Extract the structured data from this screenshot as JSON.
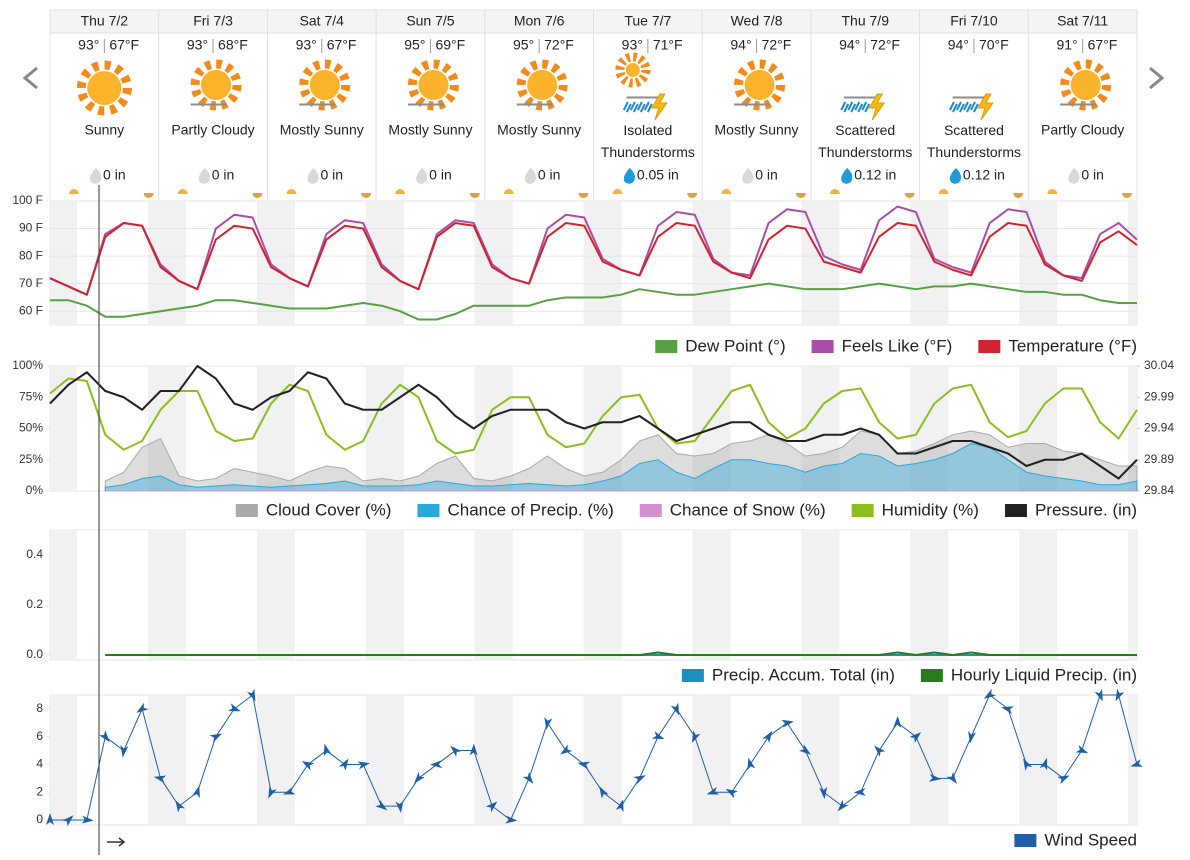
{
  "forecast": {
    "days": [
      {
        "day": "Thu 7/2",
        "high": "93°",
        "low": "67°F",
        "condition": "Sunny",
        "precip": "0 in"
      },
      {
        "day": "Fri 7/3",
        "high": "93°",
        "low": "68°F",
        "condition": "Partly Cloudy",
        "precip": "0 in"
      },
      {
        "day": "Sat 7/4",
        "high": "93°",
        "low": "67°F",
        "condition": "Mostly Sunny",
        "precip": "0 in"
      },
      {
        "day": "Sun 7/5",
        "high": "95°",
        "low": "69°F",
        "condition": "Mostly Sunny",
        "precip": "0 in"
      },
      {
        "day": "Mon 7/6",
        "high": "95°",
        "low": "72°F",
        "condition": "Mostly Sunny",
        "precip": "0 in"
      },
      {
        "day": "Tue 7/7",
        "high": "93°",
        "low": "71°F",
        "condition": "Isolated Thunderstorms",
        "precip": "0.05 in"
      },
      {
        "day": "Wed 7/8",
        "high": "94°",
        "low": "72°F",
        "condition": "Mostly Sunny",
        "precip": "0 in"
      },
      {
        "day": "Thu 7/9",
        "high": "94°",
        "low": "72°F",
        "condition": "Scattered Thunderstorms",
        "precip": "0.12 in"
      },
      {
        "day": "Fri 7/10",
        "high": "94°",
        "low": "70°F",
        "condition": "Scattered Thunderstorms",
        "precip": "0.12 in"
      },
      {
        "day": "Sat 7/11",
        "high": "91°",
        "low": "67°F",
        "condition": "Partly Cloudy",
        "precip": "0 in"
      }
    ]
  },
  "chart_data": [
    {
      "type": "line",
      "grid": true,
      "legend": "bottom-right",
      "ylim": [
        55,
        100
      ],
      "yticks": [
        {
          "value": 60,
          "label": "60 F"
        },
        {
          "value": 70,
          "label": "70 F"
        },
        {
          "value": 80,
          "label": "80 F"
        },
        {
          "value": 90,
          "label": "90 F"
        },
        {
          "value": 100,
          "label": "100 F"
        }
      ],
      "series": [
        {
          "name": "Dew Point (°)",
          "color": "#5a9e45",
          "values": [
            64,
            64,
            62,
            58,
            58,
            59,
            60,
            61,
            62,
            64,
            64,
            63,
            62,
            61,
            61,
            61,
            62,
            63,
            62,
            60,
            57,
            57,
            59,
            62,
            62,
            62,
            62,
            64,
            65,
            65,
            65,
            66,
            68,
            67,
            66,
            66,
            67,
            68,
            69,
            70,
            69,
            68,
            68,
            68,
            69,
            70,
            69,
            68,
            69,
            69,
            70,
            69,
            68,
            67,
            67,
            66,
            66,
            64,
            63,
            63
          ]
        },
        {
          "name": "Feels Like (°F)",
          "color": "#a94ea7",
          "values": [
            72,
            69,
            66,
            88,
            92,
            91,
            77,
            71,
            68,
            90,
            95,
            94,
            77,
            72,
            69,
            88,
            93,
            92,
            77,
            71,
            68,
            88,
            93,
            92,
            77,
            72,
            70,
            90,
            95,
            94,
            79,
            75,
            73,
            91,
            96,
            95,
            79,
            74,
            73,
            92,
            97,
            96,
            80,
            77,
            75,
            93,
            98,
            96,
            79,
            76,
            74,
            92,
            97,
            96,
            78,
            73,
            72,
            88,
            92,
            86
          ]
        },
        {
          "name": "Temperature (°F)",
          "color": "#d1232f",
          "values": [
            72,
            69,
            66,
            87,
            92,
            91,
            76,
            71,
            68,
            86,
            91,
            90,
            76,
            72,
            69,
            86,
            91,
            90,
            76,
            71,
            68,
            87,
            92,
            91,
            76,
            72,
            70,
            87,
            92,
            91,
            78,
            75,
            73,
            87,
            92,
            91,
            78,
            74,
            72,
            86,
            91,
            90,
            78,
            76,
            74,
            87,
            92,
            91,
            78,
            75,
            73,
            87,
            92,
            91,
            77,
            73,
            71,
            85,
            89,
            84
          ]
        }
      ]
    },
    {
      "type": "line",
      "grid": false,
      "legend": "bottom-right",
      "ylim": [
        0,
        100
      ],
      "yticks": [
        {
          "value": 0,
          "label": "0%"
        },
        {
          "value": 25,
          "label": "25%"
        },
        {
          "value": 50,
          "label": "50%"
        },
        {
          "value": 75,
          "label": "75%"
        },
        {
          "value": 100,
          "label": "100%"
        }
      ],
      "y2lim": [
        29.84,
        30.04
      ],
      "y2ticks": [
        29.84,
        29.89,
        29.94,
        29.99,
        30.04
      ],
      "series": [
        {
          "name": "Cloud Cover (%)",
          "color": "#aaaaaa",
          "type": "area",
          "values": [
            null,
            null,
            null,
            8,
            15,
            35,
            42,
            12,
            8,
            10,
            18,
            15,
            12,
            8,
            15,
            20,
            18,
            8,
            10,
            8,
            12,
            22,
            28,
            10,
            8,
            12,
            18,
            28,
            18,
            12,
            15,
            25,
            40,
            45,
            30,
            28,
            30,
            38,
            40,
            45,
            38,
            28,
            30,
            35,
            48,
            45,
            30,
            32,
            38,
            45,
            48,
            45,
            35,
            38,
            38,
            32,
            30,
            25,
            20,
            20
          ]
        },
        {
          "name": "Chance of Precip. (%)",
          "color": "#29a8dc",
          "type": "area",
          "values": [
            null,
            null,
            null,
            3,
            5,
            10,
            12,
            5,
            3,
            4,
            5,
            4,
            3,
            4,
            5,
            6,
            8,
            4,
            4,
            4,
            5,
            8,
            6,
            4,
            4,
            5,
            6,
            5,
            4,
            5,
            8,
            12,
            22,
            25,
            15,
            10,
            18,
            25,
            25,
            22,
            20,
            15,
            20,
            22,
            30,
            28,
            20,
            22,
            25,
            30,
            38,
            35,
            25,
            15,
            12,
            10,
            8,
            5,
            5,
            8
          ]
        },
        {
          "name": "Chance of Snow (%)",
          "color": "#d48fd0",
          "type": "area",
          "values": [
            null,
            null,
            null,
            0,
            0,
            0,
            0,
            0,
            0,
            0,
            0,
            0,
            0,
            0,
            0,
            0,
            0,
            0,
            0,
            0,
            0,
            0,
            0,
            0,
            0,
            0,
            0,
            0,
            0,
            0,
            0,
            0,
            0,
            0,
            0,
            0,
            0,
            0,
            0,
            0,
            0,
            0,
            0,
            0,
            0,
            0,
            0,
            0,
            0,
            0,
            0,
            0,
            0,
            0,
            0,
            0,
            0,
            0,
            0,
            0
          ]
        },
        {
          "name": "Humidity (%)",
          "color": "#8cbf1e",
          "values": [
            78,
            90,
            88,
            45,
            33,
            40,
            65,
            80,
            80,
            48,
            40,
            42,
            70,
            85,
            80,
            45,
            33,
            40,
            70,
            85,
            75,
            40,
            30,
            33,
            65,
            75,
            75,
            45,
            35,
            38,
            60,
            75,
            77,
            50,
            38,
            40,
            60,
            80,
            85,
            55,
            42,
            50,
            70,
            80,
            82,
            55,
            42,
            45,
            70,
            82,
            85,
            55,
            43,
            48,
            70,
            82,
            82,
            55,
            42,
            65
          ]
        },
        {
          "name": "Pressure. (in)",
          "color": "#222222",
          "axis": "y2",
          "values": [
            29.98,
            30.01,
            30.03,
            30.0,
            29.99,
            29.97,
            30.0,
            30.0,
            30.04,
            30.02,
            29.98,
            29.97,
            29.99,
            30.0,
            30.03,
            30.02,
            29.98,
            29.97,
            29.97,
            29.99,
            30.01,
            29.99,
            29.96,
            29.94,
            29.96,
            29.97,
            29.97,
            29.97,
            29.95,
            29.94,
            29.95,
            29.95,
            29.96,
            29.94,
            29.92,
            29.93,
            29.94,
            29.95,
            29.95,
            29.93,
            29.92,
            29.92,
            29.93,
            29.93,
            29.94,
            29.93,
            29.9,
            29.9,
            29.91,
            29.92,
            29.92,
            29.91,
            29.9,
            29.88,
            29.89,
            29.89,
            29.9,
            29.88,
            29.86,
            29.89
          ]
        }
      ]
    },
    {
      "type": "line",
      "grid": false,
      "legend": "bottom-right",
      "ylim": [
        0,
        0.5
      ],
      "yticks": [
        {
          "value": 0,
          "label": "0.0"
        },
        0.2,
        0.4
      ],
      "series": [
        {
          "name": "Precip. Accum. Total (in)",
          "color": "#1a8fc0",
          "values": [
            null,
            null,
            null,
            0,
            0,
            0,
            0,
            0,
            0,
            0,
            0,
            0,
            0,
            0,
            0,
            0,
            0,
            0,
            0,
            0,
            0,
            0,
            0,
            0,
            0,
            0,
            0,
            0,
            0,
            0,
            0,
            0,
            0,
            0,
            0,
            0,
            0,
            0,
            0,
            0,
            0,
            0,
            0,
            0,
            0,
            0,
            0,
            0,
            0,
            0,
            0,
            0,
            0,
            0,
            0,
            0,
            0,
            0,
            0,
            0
          ]
        },
        {
          "name": "Hourly Liquid Precip. (in)",
          "color": "#2a7a1e",
          "values": [
            null,
            null,
            null,
            0,
            0,
            0,
            0,
            0,
            0,
            0,
            0,
            0,
            0,
            0,
            0,
            0,
            0,
            0,
            0,
            0,
            0,
            0,
            0,
            0,
            0,
            0,
            0,
            0,
            0,
            0,
            0,
            0,
            0,
            0.01,
            0,
            0,
            0,
            0,
            0,
            0,
            0,
            0,
            0,
            0,
            0,
            0,
            0.01,
            0,
            0.01,
            0,
            0.01,
            0,
            0,
            0,
            0,
            0,
            0,
            0,
            0,
            0
          ]
        }
      ]
    },
    {
      "type": "line",
      "grid": false,
      "legend": "bottom-right",
      "ylim": [
        0,
        9
      ],
      "yticks": [
        0,
        2,
        4,
        6,
        8
      ],
      "series": [
        {
          "name": "Wind Speed",
          "color": "#1f5fa8",
          "marker": "arrow",
          "values": [
            0,
            0,
            0,
            6,
            5,
            8,
            3,
            1,
            2,
            6,
            8,
            9,
            2,
            2,
            4,
            5,
            4,
            4,
            1,
            1,
            3,
            4,
            5,
            5,
            1,
            0,
            3,
            7,
            5,
            4,
            2,
            1,
            3,
            6,
            8,
            6,
            2,
            2,
            4,
            6,
            7,
            5,
            2,
            1,
            2,
            5,
            7,
            6,
            3,
            3,
            6,
            9,
            8,
            4,
            4,
            3,
            5,
            9,
            9,
            4
          ]
        }
      ]
    }
  ]
}
